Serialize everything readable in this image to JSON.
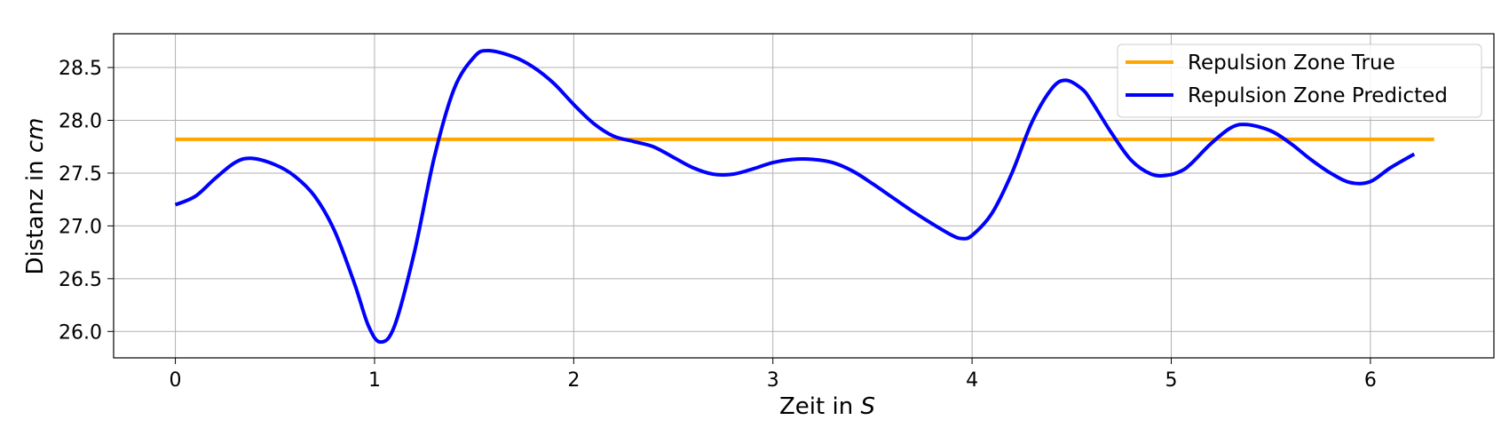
{
  "chart_data": {
    "type": "line",
    "title": "",
    "xlabel_prefix": "Zeit in ",
    "xlabel_unit": "S",
    "ylabel_prefix": "Distanz in ",
    "ylabel_unit": "cm",
    "xlim": [
      -0.31,
      6.62
    ],
    "ylim": [
      25.75,
      28.82
    ],
    "xticks": [
      0,
      1,
      2,
      3,
      4,
      5,
      6
    ],
    "yticks": [
      26.0,
      26.5,
      27.0,
      27.5,
      28.0,
      28.5
    ],
    "ytick_labels": [
      "26.0",
      "26.5",
      "27.0",
      "27.5",
      "28.0",
      "28.5"
    ],
    "grid": true,
    "legend_position": "top-right",
    "series": [
      {
        "name": "Repulsion Zone True",
        "color": "#FFA500",
        "x": [
          0,
          6.32
        ],
        "y": [
          27.82,
          27.82
        ]
      },
      {
        "name": "Repulsion Zone Predicted",
        "color": "#0000FF",
        "x": [
          0,
          0.1,
          0.2,
          0.3,
          0.38,
          0.5,
          0.6,
          0.7,
          0.8,
          0.9,
          0.97,
          1.03,
          1.1,
          1.2,
          1.3,
          1.4,
          1.5,
          1.57,
          1.7,
          1.8,
          1.9,
          2.0,
          2.1,
          2.2,
          2.3,
          2.4,
          2.5,
          2.6,
          2.7,
          2.8,
          2.9,
          3.0,
          3.1,
          3.2,
          3.3,
          3.4,
          3.5,
          3.6,
          3.7,
          3.8,
          3.9,
          3.95,
          4.0,
          4.1,
          4.2,
          4.3,
          4.4,
          4.47,
          4.55,
          4.6,
          4.7,
          4.8,
          4.9,
          4.98,
          5.05,
          5.1,
          5.2,
          5.3,
          5.38,
          5.5,
          5.6,
          5.7,
          5.8,
          5.9,
          6.0,
          6.1,
          6.22
        ],
        "y": [
          27.2,
          27.28,
          27.45,
          27.6,
          27.64,
          27.58,
          27.47,
          27.28,
          26.95,
          26.45,
          26.05,
          25.9,
          26.05,
          26.75,
          27.65,
          28.3,
          28.6,
          28.66,
          28.6,
          28.5,
          28.35,
          28.15,
          27.97,
          27.85,
          27.8,
          27.75,
          27.65,
          27.55,
          27.49,
          27.49,
          27.54,
          27.6,
          27.63,
          27.63,
          27.6,
          27.52,
          27.4,
          27.27,
          27.14,
          27.02,
          26.91,
          26.88,
          26.91,
          27.12,
          27.5,
          27.98,
          28.3,
          28.38,
          28.3,
          28.18,
          27.88,
          27.62,
          27.49,
          27.48,
          27.52,
          27.59,
          27.78,
          27.93,
          27.96,
          27.9,
          27.78,
          27.63,
          27.5,
          27.41,
          27.42,
          27.55,
          27.68
        ]
      }
    ]
  }
}
